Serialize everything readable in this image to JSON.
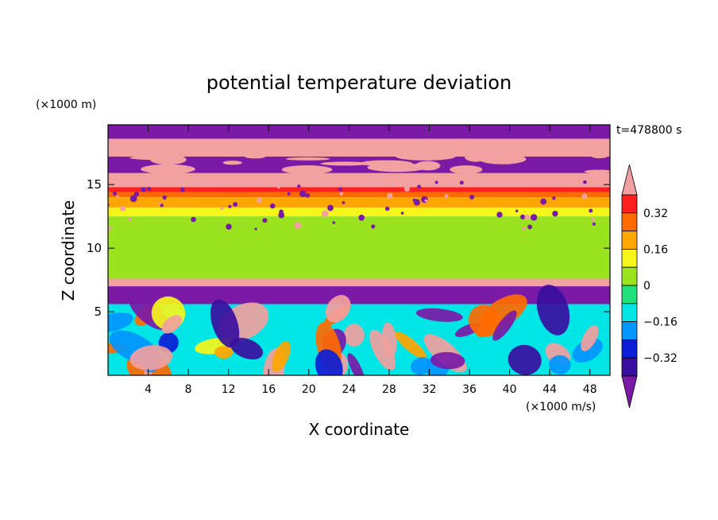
{
  "chart_data": {
    "type": "heatmap",
    "title": "potential temperature deviation",
    "time_label": "t=478800 s",
    "xlabel": "X coordinate",
    "ylabel": "Z coordinate",
    "x_unit": "(×1000 m/s)",
    "y_unit": "(×1000 m)",
    "x_ticks": [
      4,
      8,
      12,
      16,
      20,
      24,
      28,
      32,
      36,
      40,
      44,
      48
    ],
    "y_ticks": [
      5,
      10,
      15
    ],
    "xlim": [
      0,
      50
    ],
    "ylim": [
      0,
      19.7
    ],
    "colorbar": {
      "levels": [
        -0.4,
        -0.32,
        -0.24,
        -0.16,
        -0.08,
        0,
        0.08,
        0.16,
        0.24,
        0.32,
        0.4
      ],
      "tick_labels": [
        "0.32",
        "0.16",
        "0",
        "−0.16",
        "−0.32"
      ],
      "tick_values": [
        0.32,
        0.16,
        0,
        -0.16,
        -0.32
      ],
      "colors": [
        "#7a1aa6",
        "#3a0fa0",
        "#0a1ed6",
        "#0096ff",
        "#00e6e6",
        "#22e07a",
        "#9be21f",
        "#f5f51a",
        "#ffa500",
        "#ff6a00",
        "#ff2020",
        "#f2a0a0"
      ]
    },
    "layers": [
      {
        "z": [
          18.6,
          19.7
        ],
        "value": -0.45
      },
      {
        "z": [
          17.2,
          18.6
        ],
        "value": 0.45
      },
      {
        "z": [
          15.9,
          17.2
        ],
        "value": -0.45
      },
      {
        "z": [
          14.8,
          15.9
        ],
        "value": 0.42
      },
      {
        "z": [
          14.4,
          14.8
        ],
        "value": 0.35
      },
      {
        "z": [
          14.0,
          14.4
        ],
        "value": 0.28
      },
      {
        "z": [
          13.2,
          14.0
        ],
        "value": 0.18
      },
      {
        "z": [
          12.5,
          13.2
        ],
        "value": 0.12
      },
      {
        "z": [
          7.6,
          12.5
        ],
        "value": 0.02
      },
      {
        "z": [
          7.0,
          7.6
        ],
        "value": 0.45
      },
      {
        "z": [
          5.6,
          7.0
        ],
        "value": -0.45
      }
    ]
  }
}
